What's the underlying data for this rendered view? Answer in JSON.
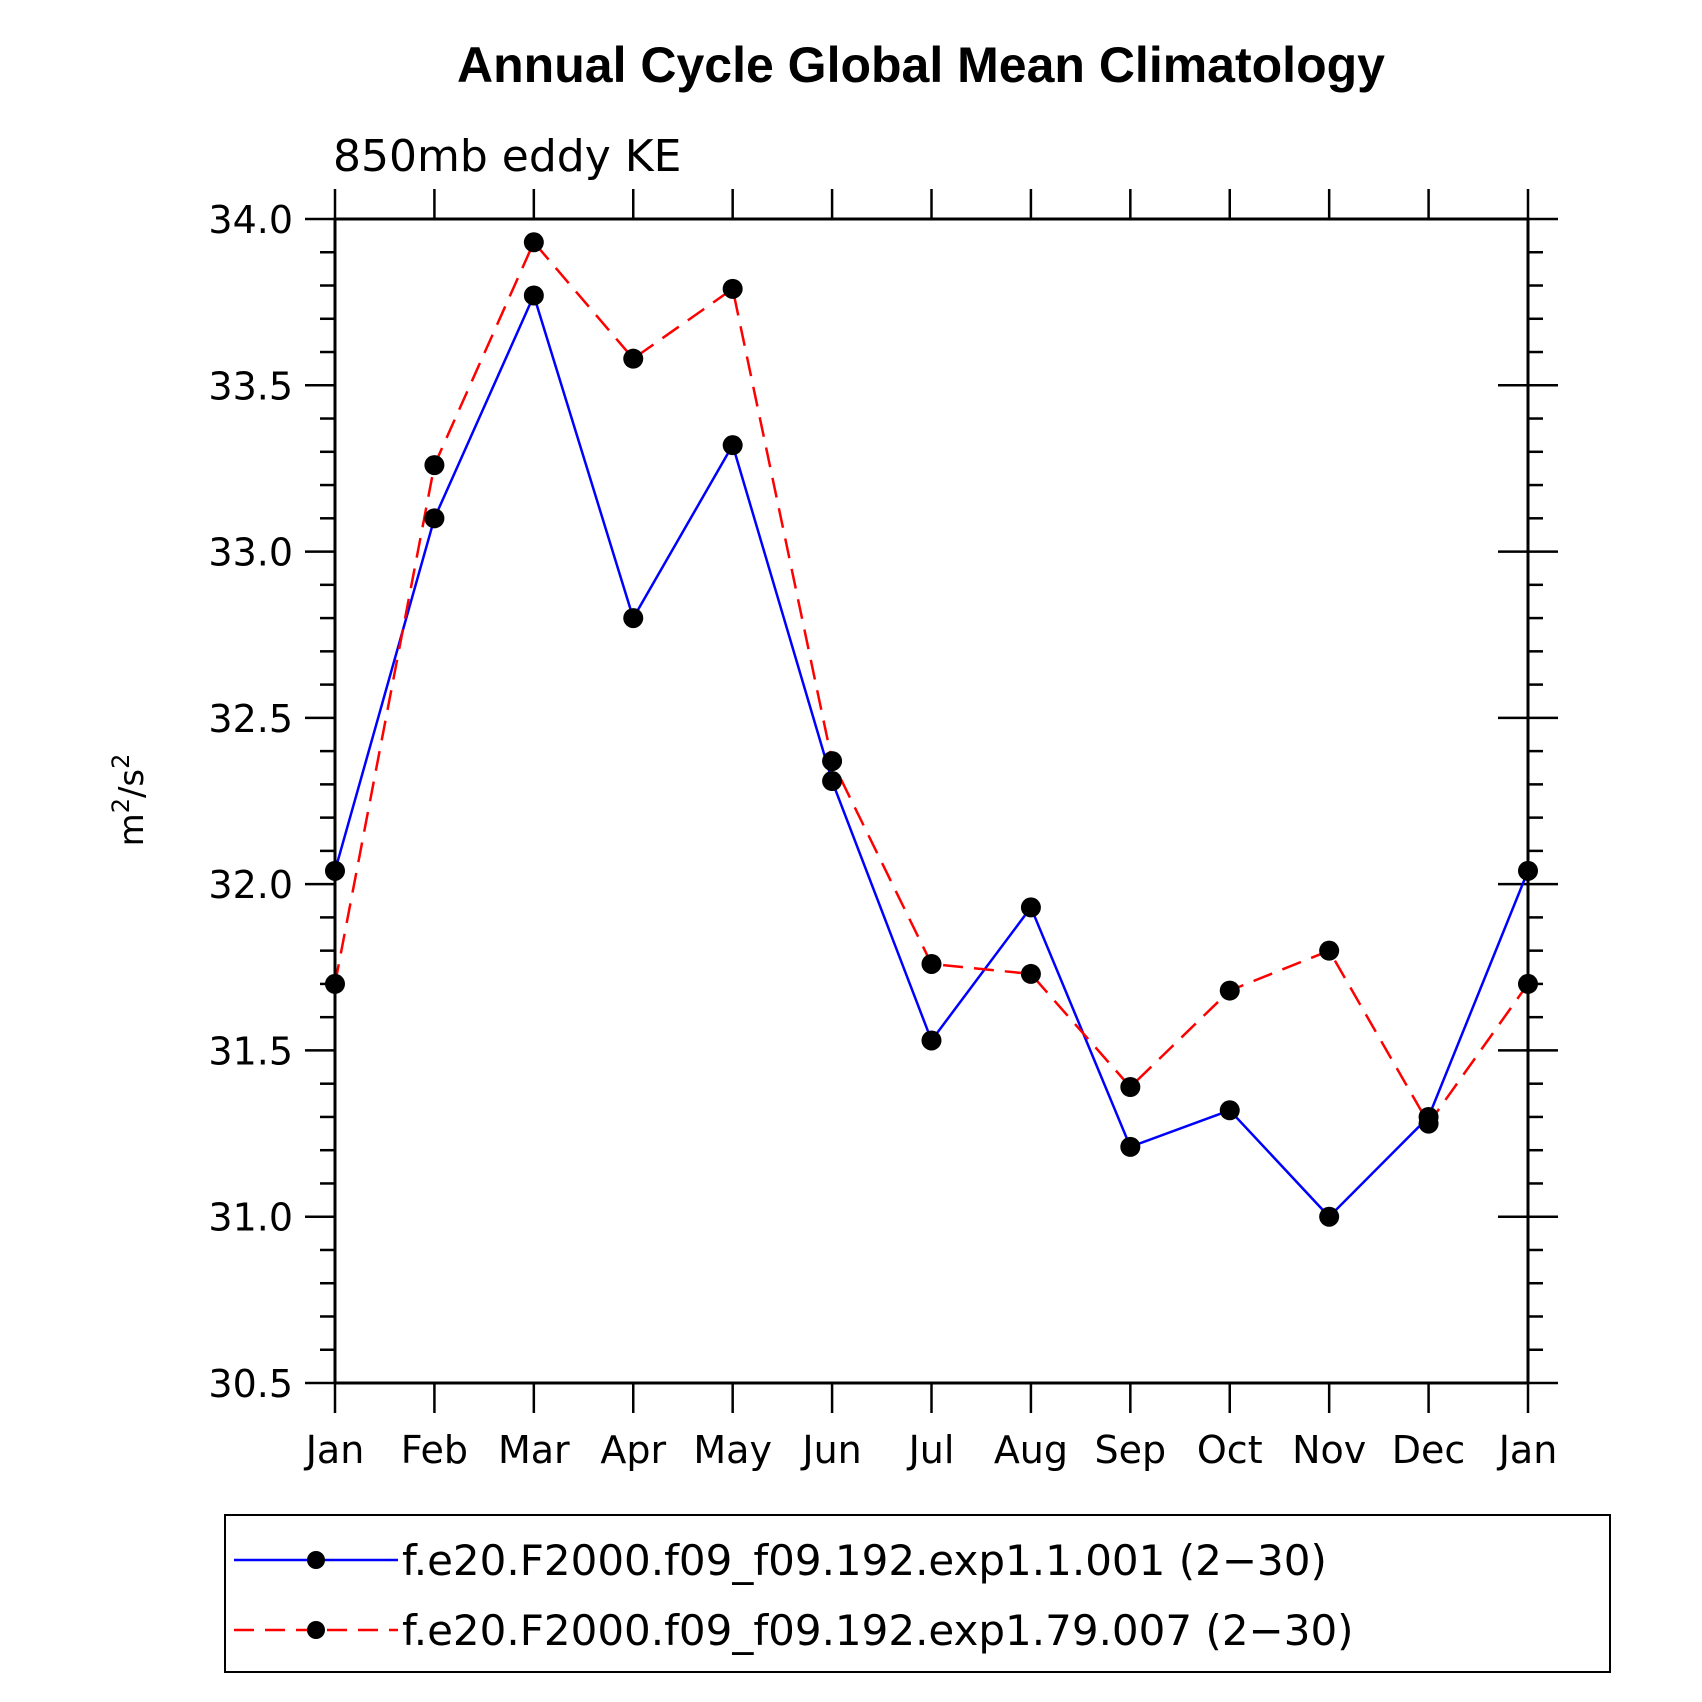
{
  "chart_data": {
    "type": "line",
    "title": "Annual Cycle Global Mean Climatology",
    "subtitle": "850mb eddy KE",
    "xlabel": "",
    "ylabel_base": "m",
    "ylabel_exp1": "2",
    "ylabel_sep": "/s",
    "ylabel_exp2": "2",
    "categories": [
      "Jan",
      "Feb",
      "Mar",
      "Apr",
      "May",
      "Jun",
      "Jul",
      "Aug",
      "Sep",
      "Oct",
      "Nov",
      "Dec",
      "Jan"
    ],
    "ylim": [
      30.5,
      34.0
    ],
    "yticks": [
      "30.5",
      "31.0",
      "31.5",
      "32.0",
      "32.5",
      "33.0",
      "33.5",
      "34.0"
    ],
    "grid": false,
    "legend_position": "bottom",
    "series": [
      {
        "name": "f.e20.F2000.f09_f09.192.exp1.1.001 (2−30)",
        "color": "#0000ff",
        "dash": "solid",
        "values": [
          32.04,
          33.1,
          33.77,
          32.8,
          33.32,
          32.31,
          31.53,
          31.93,
          31.21,
          31.32,
          31.0,
          31.3,
          32.04
        ]
      },
      {
        "name": "f.e20.F2000.f09_f09.192.exp1.79.007 (2−30)",
        "color": "#ff0000",
        "dash": "dashed",
        "values": [
          31.7,
          33.26,
          33.93,
          33.58,
          33.79,
          32.37,
          31.76,
          31.73,
          31.39,
          31.68,
          31.8,
          31.28,
          31.7
        ]
      }
    ]
  }
}
